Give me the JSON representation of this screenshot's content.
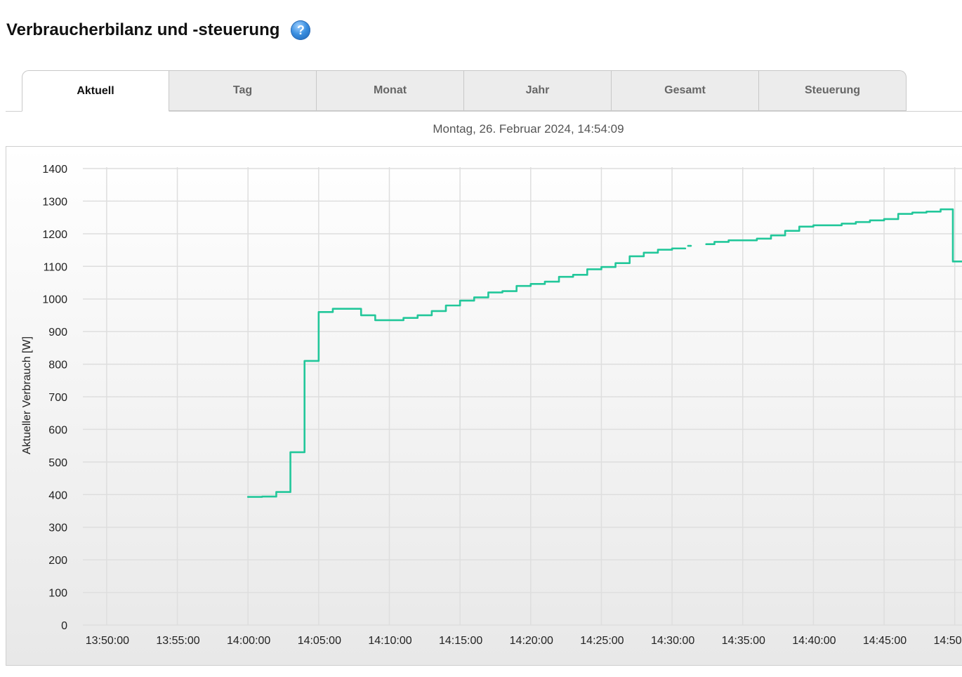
{
  "header": {
    "title": "Verbraucherbilanz und -steuerung",
    "help_icon": "question-circle-icon",
    "help_glyph": "?"
  },
  "tabs": [
    {
      "label": "Aktuell",
      "active": true
    },
    {
      "label": "Tag",
      "active": false
    },
    {
      "label": "Monat",
      "active": false
    },
    {
      "label": "Jahr",
      "active": false
    },
    {
      "label": "Gesamt",
      "active": false
    },
    {
      "label": "Steuerung",
      "active": false
    }
  ],
  "timestamp": "Montag, 26. Februar 2024, 14:54:09",
  "chart_data": {
    "type": "line",
    "step": true,
    "title": "",
    "xlabel": "",
    "ylabel": "Aktueller Verbrauch [W]",
    "ylim": [
      0,
      1400
    ],
    "yticks": [
      "0",
      "100",
      "200",
      "300",
      "400",
      "500",
      "600",
      "700",
      "800",
      "900",
      "1000",
      "1100",
      "1200",
      "1300",
      "1400"
    ],
    "xlim": [
      "13:48:19",
      "14:50:30"
    ],
    "xticks": [
      "13:50:00",
      "13:55:00",
      "14:00:00",
      "14:05:00",
      "14:10:00",
      "14:15:00",
      "14:20:00",
      "14:25:00",
      "14:30:00",
      "14:35:00",
      "14:40:00",
      "14:45:00",
      "14:50:00"
    ],
    "grid": true,
    "line_color": "#22c79a",
    "segments": [
      [
        [
          "14:00:00",
          393
        ],
        [
          "14:01:00",
          394
        ],
        [
          "14:02:00",
          408
        ],
        [
          "14:03:00",
          530
        ],
        [
          "14:04:00",
          810
        ],
        [
          "14:05:00",
          960
        ],
        [
          "14:06:00",
          970
        ],
        [
          "14:08:00",
          950
        ],
        [
          "14:09:00",
          935
        ],
        [
          "14:11:00",
          942
        ],
        [
          "14:12:00",
          950
        ],
        [
          "14:13:00",
          963
        ],
        [
          "14:14:00",
          980
        ],
        [
          "14:15:00",
          995
        ],
        [
          "14:16:00",
          1005
        ],
        [
          "14:17:00",
          1020
        ],
        [
          "14:18:00",
          1024
        ],
        [
          "14:19:00",
          1040
        ],
        [
          "14:20:00",
          1046
        ],
        [
          "14:21:00",
          1053
        ],
        [
          "14:22:00",
          1068
        ],
        [
          "14:23:00",
          1074
        ],
        [
          "14:24:00",
          1091
        ],
        [
          "14:25:00",
          1098
        ],
        [
          "14:26:00",
          1110
        ],
        [
          "14:27:00",
          1131
        ],
        [
          "14:28:00",
          1142
        ],
        [
          "14:29:00",
          1151
        ],
        [
          "14:30:00",
          1155
        ],
        [
          "14:30:56",
          1155
        ]
      ],
      [
        [
          "14:31:08",
          1163
        ],
        [
          "14:31:20",
          1163
        ]
      ],
      [
        [
          "14:32:25",
          1168
        ],
        [
          "14:33:00",
          1175
        ],
        [
          "14:34:00",
          1180
        ],
        [
          "14:36:00",
          1185
        ],
        [
          "14:37:00",
          1195
        ],
        [
          "14:38:00",
          1209
        ],
        [
          "14:39:00",
          1222
        ],
        [
          "14:40:00",
          1226
        ],
        [
          "14:42:00",
          1231
        ],
        [
          "14:43:00",
          1236
        ],
        [
          "14:44:00",
          1241
        ],
        [
          "14:45:00",
          1245
        ],
        [
          "14:46:00",
          1261
        ],
        [
          "14:47:00",
          1265
        ],
        [
          "14:48:00",
          1268
        ],
        [
          "14:49:00",
          1275
        ],
        [
          "14:49:52",
          1115
        ],
        [
          "14:50:30",
          1115
        ]
      ]
    ]
  }
}
